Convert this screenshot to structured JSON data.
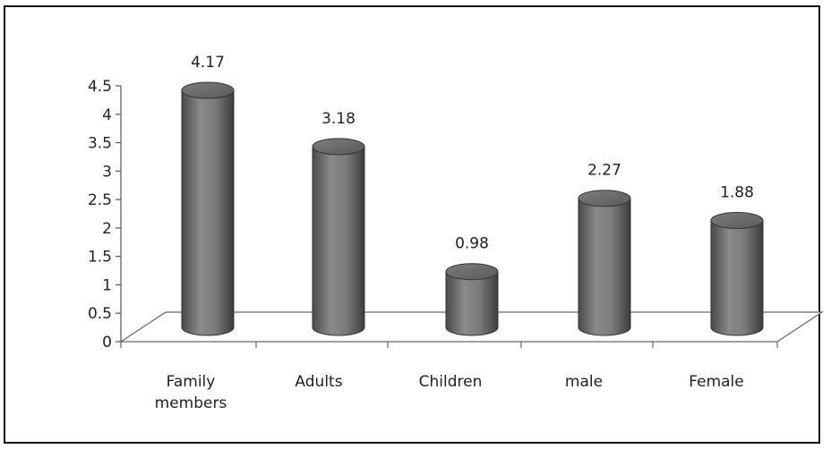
{
  "chart_data": {
    "type": "bar",
    "style": "3d-cylinder",
    "categories": [
      [
        "Family",
        "members"
      ],
      [
        "Adults"
      ],
      [
        "Children"
      ],
      [
        "male"
      ],
      [
        "Female"
      ]
    ],
    "values": [
      4.17,
      3.18,
      0.98,
      2.27,
      1.88
    ],
    "data_labels": [
      "4.17",
      "3.18",
      "0.98",
      "2.27",
      "1.88"
    ],
    "yticks": [
      "0",
      "0.5",
      "1",
      "1.5",
      "2",
      "2.5",
      "3",
      "3.5",
      "4",
      "4.5"
    ],
    "ylim": [
      0,
      4.5
    ],
    "grid": false,
    "bar_color": "#6e6e6e"
  }
}
